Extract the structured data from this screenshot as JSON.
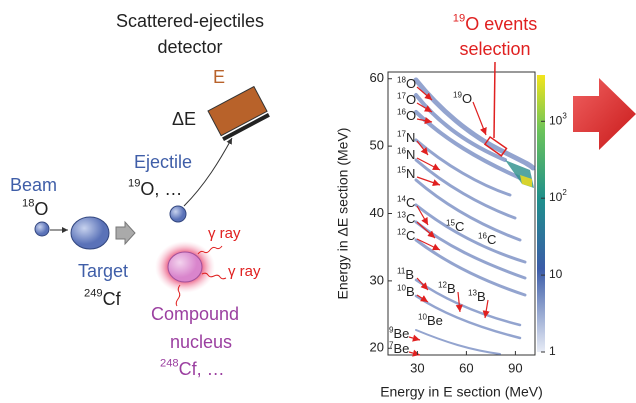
{
  "detector": {
    "title_lines": [
      "Scattered-ejectiles",
      "detector"
    ],
    "e_label": "E",
    "de_label": "ΔE"
  },
  "beam": {
    "label": "Beam",
    "mass": "18",
    "symbol": "O"
  },
  "target": {
    "label": "Target",
    "mass": "249",
    "symbol": "Cf"
  },
  "ejectile": {
    "label": "Ejectile",
    "mass": "19",
    "symbol": "O, …"
  },
  "gamma": [
    "γ ray",
    "γ ray"
  ],
  "compound": {
    "lines": [
      "Compound",
      "nucleus"
    ],
    "mass": "248",
    "symbol": "Cf, …"
  },
  "selection": {
    "mass": "19",
    "symbol": "O events",
    "line2": "selection"
  },
  "plot": {
    "xlabel": "Energy in E section (MeV)",
    "ylabel": "Energy in ΔE section (MeV)",
    "xlim": [
      12,
      102
    ],
    "xticks": [
      30,
      60,
      90
    ],
    "ylim": [
      19,
      61
    ],
    "yticks": [
      20,
      30,
      40,
      50,
      60
    ],
    "colorbar": {
      "log": true,
      "clim": [
        1,
        4000
      ],
      "ticks": [
        {
          "value": 1,
          "label": "1"
        },
        {
          "value": 10,
          "label": "10"
        },
        {
          "value": 100,
          "label": "10",
          "exponent": "2"
        },
        {
          "value": 1000,
          "label": "10",
          "exponent": "3"
        }
      ]
    },
    "ion_labels": [
      {
        "mass": "18",
        "symbol": "O"
      },
      {
        "mass": "17",
        "symbol": "O"
      },
      {
        "mass": "16",
        "symbol": "O"
      },
      {
        "mass": "19",
        "symbol": "O"
      },
      {
        "mass": "17",
        "symbol": "N"
      },
      {
        "mass": "16",
        "symbol": "N"
      },
      {
        "mass": "15",
        "symbol": "N"
      },
      {
        "mass": "14",
        "symbol": "C"
      },
      {
        "mass": "13",
        "symbol": "C"
      },
      {
        "mass": "12",
        "symbol": "C"
      },
      {
        "mass": "15",
        "symbol": "C"
      },
      {
        "mass": "16",
        "symbol": "C"
      },
      {
        "mass": "11",
        "symbol": "B"
      },
      {
        "mass": "10",
        "symbol": "B"
      },
      {
        "mass": "12",
        "symbol": "B"
      },
      {
        "mass": "13",
        "symbol": "B"
      },
      {
        "mass": "10",
        "symbol": "Be"
      },
      {
        "mass": "9",
        "symbol": "Be"
      },
      {
        "mass": "7",
        "symbol": "Be"
      }
    ]
  }
}
